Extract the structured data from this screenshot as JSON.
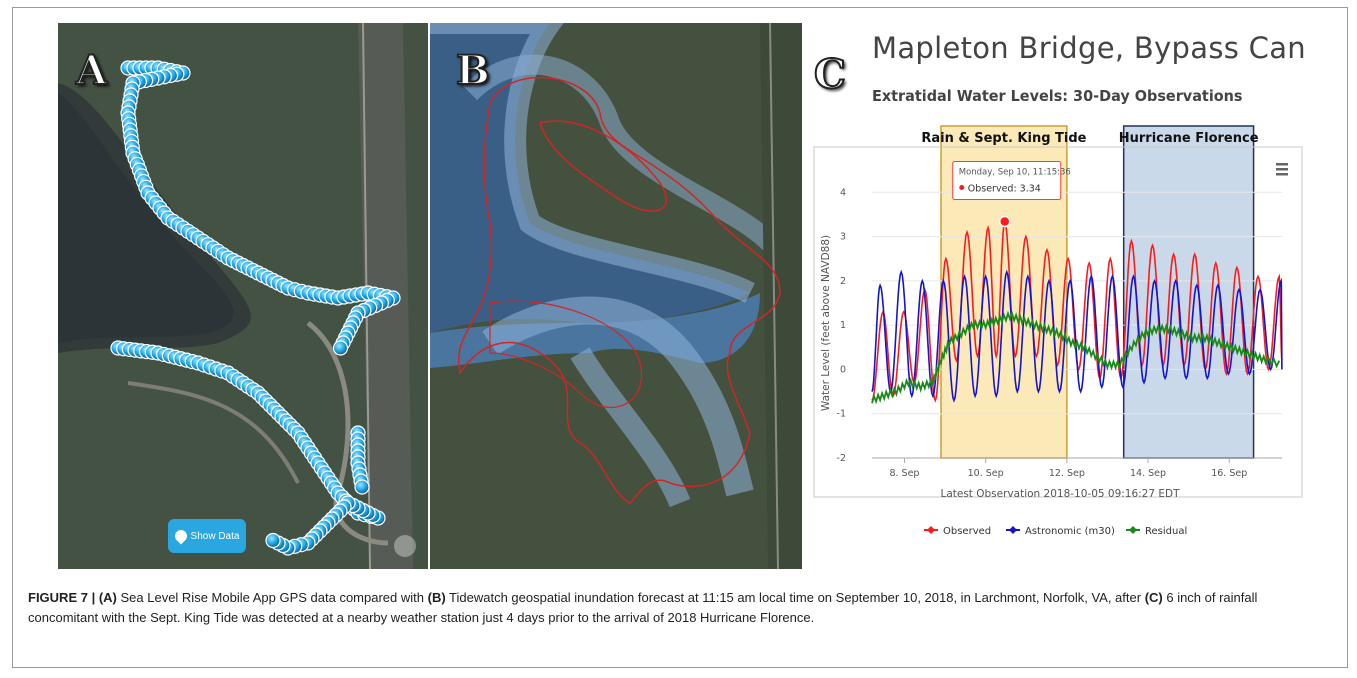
{
  "panels": {
    "a_label": "A",
    "b_label": "B",
    "c_label": "C",
    "show_data_label": "Show Data"
  },
  "chart_data": {
    "type": "line",
    "title": "Mapleton Bridge, Bypass Canal",
    "subtitle": "Extratidal Water Levels: 30-Day Observations",
    "ylabel": "Water Level (feet above NAVD88)",
    "xlabel": "Latest Observation 2018-10-05 09:16:27 EDT",
    "ylim": [
      -2,
      5
    ],
    "xlim": [
      7.2,
      17.3
    ],
    "xticks": [
      8,
      10,
      12,
      14,
      16
    ],
    "xtick_labels": [
      "8. Sep",
      "10. Sep",
      "12. Sep",
      "14. Sep",
      "16. Sep"
    ],
    "yticks": [
      -2,
      -1,
      0,
      1,
      2,
      3,
      4
    ],
    "yticks_text": [
      "-2",
      "-1",
      "0",
      "1",
      "2",
      "3",
      "4"
    ],
    "grid": true,
    "legend_position": "bottom-center",
    "bands": [
      {
        "label": "Rain & Sept. King Tide",
        "from": 8.9,
        "to": 12.0,
        "color": "#fbe9b8",
        "border": "#c8a133"
      },
      {
        "label": "Hurricane Florence",
        "from": 13.4,
        "to": 16.6,
        "color": "#c9d9ea",
        "border": "#22325a"
      }
    ],
    "tooltip": {
      "header": "Monday, Sep 10, 11:15:36",
      "line": "Observed: 3.34",
      "x": 10.47,
      "y": 3.34
    },
    "series": [
      {
        "name": "Observed",
        "color": "#ff1a1a",
        "peaks": [
          [
            7.47,
            1.3
          ],
          [
            7.98,
            1.3
          ],
          [
            8.5,
            1.8
          ],
          [
            9.02,
            2.5
          ],
          [
            9.54,
            3.1
          ],
          [
            10.06,
            3.2
          ],
          [
            10.47,
            3.34
          ],
          [
            10.99,
            3.0
          ],
          [
            11.51,
            2.7
          ],
          [
            12.03,
            2.5
          ],
          [
            12.55,
            2.4
          ],
          [
            13.07,
            2.5
          ],
          [
            13.59,
            2.9
          ],
          [
            14.11,
            2.8
          ],
          [
            14.63,
            2.6
          ],
          [
            15.15,
            2.6
          ],
          [
            15.67,
            2.4
          ],
          [
            16.19,
            2.3
          ],
          [
            16.71,
            2.1
          ],
          [
            17.23,
            2.1
          ]
        ],
        "troughs": [
          [
            7.2,
            -0.7
          ],
          [
            7.72,
            -0.6
          ],
          [
            8.24,
            -0.3
          ],
          [
            8.76,
            -0.7
          ],
          [
            9.28,
            0.2
          ],
          [
            9.8,
            0.3
          ],
          [
            10.26,
            0.3
          ],
          [
            10.73,
            0.3
          ],
          [
            11.25,
            0.3
          ],
          [
            11.77,
            0.1
          ],
          [
            12.29,
            0.0
          ],
          [
            12.81,
            -0.2
          ],
          [
            13.33,
            -0.2
          ],
          [
            13.85,
            0.1
          ],
          [
            14.37,
            0.1
          ],
          [
            14.89,
            0.1
          ],
          [
            15.41,
            0.0
          ],
          [
            15.93,
            -0.1
          ],
          [
            16.45,
            -0.1
          ],
          [
            16.97,
            0.0
          ],
          [
            17.3,
            0.2
          ]
        ]
      },
      {
        "name": "Astronomic (m30)",
        "color": "#1414d2",
        "peaks": [
          [
            7.4,
            1.9
          ],
          [
            7.92,
            2.2
          ],
          [
            8.44,
            2.0
          ],
          [
            8.96,
            2.0
          ],
          [
            9.48,
            2.1
          ],
          [
            10.0,
            2.1
          ],
          [
            10.52,
            2.2
          ],
          [
            11.04,
            2.1
          ],
          [
            11.56,
            2.0
          ],
          [
            12.08,
            2.0
          ],
          [
            12.6,
            2.1
          ],
          [
            13.12,
            2.1
          ],
          [
            13.64,
            2.1
          ],
          [
            14.16,
            2.0
          ],
          [
            14.68,
            2.0
          ],
          [
            15.2,
            1.9
          ],
          [
            15.72,
            1.9
          ],
          [
            16.24,
            1.8
          ],
          [
            16.76,
            1.8
          ],
          [
            17.28,
            2.0
          ]
        ],
        "troughs": [
          [
            7.2,
            -0.5
          ],
          [
            7.66,
            -0.5
          ],
          [
            8.18,
            -0.6
          ],
          [
            8.7,
            -0.6
          ],
          [
            9.22,
            -0.7
          ],
          [
            9.74,
            -0.6
          ],
          [
            10.26,
            -0.6
          ],
          [
            10.78,
            -0.5
          ],
          [
            11.3,
            -0.5
          ],
          [
            11.82,
            -0.5
          ],
          [
            12.34,
            -0.5
          ],
          [
            12.86,
            -0.4
          ],
          [
            13.38,
            -0.4
          ],
          [
            13.9,
            -0.3
          ],
          [
            14.42,
            -0.2
          ],
          [
            14.94,
            -0.2
          ],
          [
            15.46,
            -0.2
          ],
          [
            15.98,
            -0.1
          ],
          [
            16.5,
            -0.1
          ],
          [
            17.02,
            0.0
          ],
          [
            17.3,
            0.0
          ]
        ]
      },
      {
        "name": "Residual",
        "color": "#1a8a1a",
        "points": [
          [
            7.2,
            -0.7
          ],
          [
            7.5,
            -0.6
          ],
          [
            7.8,
            -0.5
          ],
          [
            8.1,
            -0.3
          ],
          [
            8.4,
            -0.4
          ],
          [
            8.7,
            -0.3
          ],
          [
            8.9,
            0.2
          ],
          [
            9.1,
            0.6
          ],
          [
            9.4,
            0.8
          ],
          [
            9.7,
            1.0
          ],
          [
            10.0,
            1.0
          ],
          [
            10.3,
            1.1
          ],
          [
            10.6,
            1.2
          ],
          [
            10.9,
            1.1
          ],
          [
            11.2,
            1.0
          ],
          [
            11.5,
            0.9
          ],
          [
            11.8,
            0.8
          ],
          [
            12.1,
            0.6
          ],
          [
            12.4,
            0.5
          ],
          [
            12.7,
            0.3
          ],
          [
            13.0,
            0.1
          ],
          [
            13.3,
            0.1
          ],
          [
            13.6,
            0.5
          ],
          [
            13.9,
            0.8
          ],
          [
            14.2,
            0.9
          ],
          [
            14.5,
            0.9
          ],
          [
            14.8,
            0.8
          ],
          [
            15.1,
            0.7
          ],
          [
            15.4,
            0.7
          ],
          [
            15.7,
            0.6
          ],
          [
            16.0,
            0.5
          ],
          [
            16.3,
            0.4
          ],
          [
            16.6,
            0.3
          ],
          [
            16.9,
            0.2
          ],
          [
            17.3,
            0.1
          ]
        ]
      }
    ]
  },
  "caption": {
    "fig": "FIGURE 7 |",
    "a": "(A)",
    "t1": " Sea Level Rise Mobile App GPS data compared with ",
    "b": "(B)",
    "t2": " Tidewatch geospatial inundation forecast at 11:15 am local time on September 10, 2018, in Larchmont, Norfolk, VA, after ",
    "c": "(C)",
    "t3": " 6 inch of rainfall concomitant with the Sept. King Tide was detected at a nearby weather station just 4 days prior to the arrival of 2018 Hurricane Florence."
  }
}
